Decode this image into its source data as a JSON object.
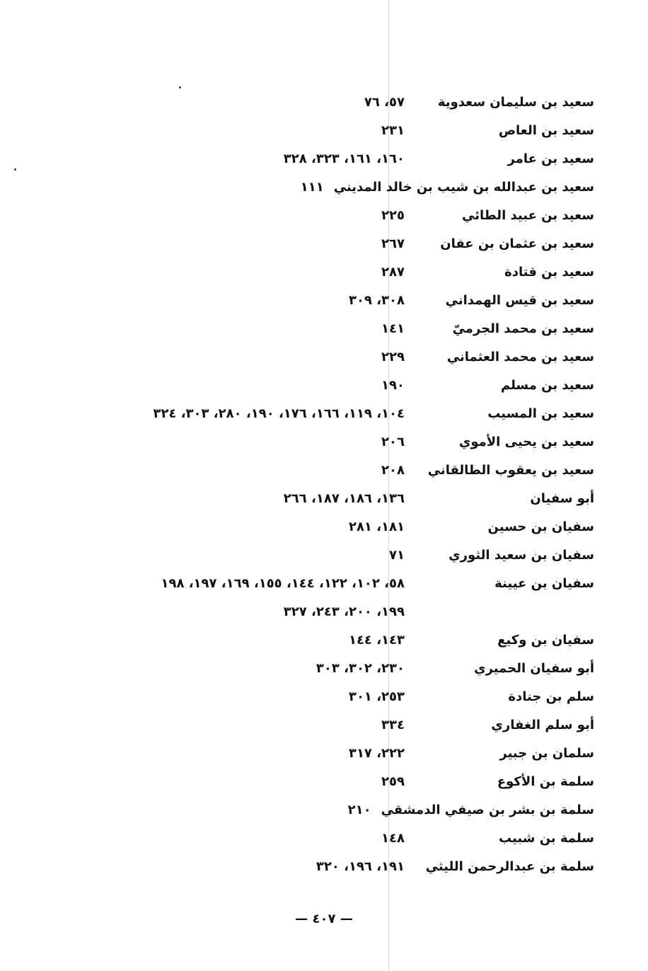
{
  "entries": [
    {
      "name": "سعيد بن سليمان سعدوية",
      "pages": "٥٧، ٧٦"
    },
    {
      "name": "سعيد بن العاص",
      "pages": "٢٣١"
    },
    {
      "name": "سعيد بن عامر",
      "pages": "١٦٠، ١٦١، ٣٢٣، ٣٢٨"
    },
    {
      "name": "سعيد بن عبدالله بن شيب بن خالد المديني",
      "pages": "١١١"
    },
    {
      "name": "سعيد بن عبيد الطائي",
      "pages": "٢٢٥"
    },
    {
      "name": "سعيد بن عثمان بن عفان",
      "pages": "٢٦٧"
    },
    {
      "name": "سعيد بن قتادة",
      "pages": "٢٨٧"
    },
    {
      "name": "سعيد بن قيس الهمداني",
      "pages": "٣٠٨، ٣٠٩"
    },
    {
      "name": "سعيد بن محمد الجرميّ",
      "pages": "١٤١"
    },
    {
      "name": "سعيد بن محمد العثماني",
      "pages": "٢٢٩"
    },
    {
      "name": "سعيد بن مسلم",
      "pages": "١٩٠"
    },
    {
      "name": "سعيد بن المسيب",
      "pages": "١٠٤، ١١٩، ١٦٦، ١٧٦، ١٩٠، ٢٨٠، ٣٠٣، ٣٢٤"
    },
    {
      "name": "سعيد بن يحيى الأموي",
      "pages": "٢٠٦"
    },
    {
      "name": "سعيد بن يعقوب الطالقاني",
      "pages": "٢٠٨"
    },
    {
      "name": "أبو سفيان",
      "pages": "١٣٦، ١٨٦، ١٨٧، ٢٦٦"
    },
    {
      "name": "سفيان بن حسين",
      "pages": "١٨١، ٢٨١"
    },
    {
      "name": "سفيان بن سعيد الثوري",
      "pages": "٧١"
    },
    {
      "name": "سفيان بن عيينة",
      "pages": "٥٨، ١٠٢، ١٢٢، ١٤٤، ١٥٥، ١٦٩، ١٩٧، ١٩٨"
    },
    {
      "name": "",
      "pages": "١٩٩، ٢٠٠، ٢٤٣، ٣٢٧"
    },
    {
      "name": "سفيان بن وكيع",
      "pages": "١٤٣، ١٤٤"
    },
    {
      "name": "أبو سفيان الحميري",
      "pages": "٢٣٠، ٣٠٢، ٣٠٣"
    },
    {
      "name": "سلم بن جنادة",
      "pages": "٢٥٣، ٣٠١"
    },
    {
      "name": "أبو سلم الغفاري",
      "pages": "٣٣٤"
    },
    {
      "name": "سلمان بن جبير",
      "pages": "٢٢٢، ٣١٧"
    },
    {
      "name": "سلمة بن الأكوع",
      "pages": "٢٥٩"
    },
    {
      "name": "سلمة بن بشر بن صيفي الدمشقي",
      "pages": "٢١٠"
    },
    {
      "name": "سلمة بن شبيب",
      "pages": "١٤٨"
    },
    {
      "name": "سلمة بن عبدالرحمن الليثي",
      "pages": "١٩١، ١٩٦، ٣٢٠"
    }
  ],
  "footer": {
    "page_number": "— ٤٠٧ —"
  }
}
